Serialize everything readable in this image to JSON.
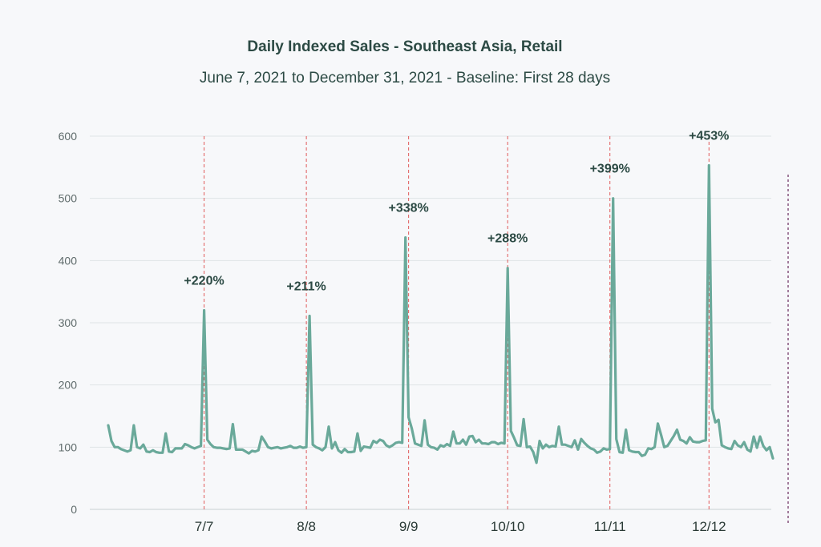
{
  "chart_data": {
    "type": "line",
    "title": "Daily Indexed Sales - Southeast Asia, Retail",
    "subtitle": "June 7, 2021 to December 31, 2021 - Baseline: First 28 days",
    "xlabel": "",
    "ylabel": "",
    "x_start": "2021-06-07",
    "x_end": "2021-12-31",
    "ylim": [
      0,
      600
    ],
    "yticks": [
      0,
      100,
      200,
      300,
      400,
      500,
      600
    ],
    "grid": true,
    "xticks": [
      {
        "date": "2021-07-07",
        "label": "7/7"
      },
      {
        "date": "2021-08-08",
        "label": "8/8"
      },
      {
        "date": "2021-09-09",
        "label": "9/9"
      },
      {
        "date": "2021-10-10",
        "label": "10/10"
      },
      {
        "date": "2021-11-11",
        "label": "11/11"
      },
      {
        "date": "2021-12-12",
        "label": "12/12"
      }
    ],
    "series": [
      {
        "name": "",
        "color": "#6aa99a",
        "values": [
          135,
          110,
          100,
          100,
          97,
          95,
          93,
          95,
          135,
          100,
          98,
          104,
          93,
          92,
          95,
          92,
          91,
          91,
          122,
          93,
          92,
          98,
          98,
          98,
          105,
          103,
          100,
          98,
          100,
          102,
          320,
          112,
          105,
          100,
          99,
          99,
          98,
          97,
          98,
          137,
          96,
          96,
          96,
          93,
          90,
          94,
          93,
          95,
          117,
          109,
          100,
          98,
          99,
          100,
          98,
          99,
          100,
          102,
          99,
          99,
          101,
          99,
          100,
          311,
          104,
          100,
          98,
          95,
          100,
          133,
          98,
          108,
          95,
          91,
          97,
          92,
          92,
          93,
          122,
          94,
          101,
          100,
          99,
          110,
          107,
          112,
          110,
          103,
          100,
          103,
          107,
          108,
          107,
          437,
          148,
          130,
          106,
          104,
          102,
          143,
          104,
          100,
          99,
          96,
          103,
          101,
          105,
          102,
          125,
          106,
          106,
          112,
          104,
          117,
          118,
          108,
          112,
          106,
          106,
          105,
          108,
          108,
          105,
          107,
          106,
          388,
          126,
          115,
          103,
          102,
          145,
          100,
          101,
          92,
          75,
          110,
          98,
          104,
          100,
          102,
          101,
          133,
          104,
          104,
          102,
          100,
          111,
          96,
          113,
          107,
          102,
          98,
          96,
          91,
          93,
          98,
          96,
          97,
          500,
          113,
          92,
          91,
          128,
          95,
          93,
          92,
          92,
          86,
          88,
          98,
          97,
          100,
          138,
          120,
          100,
          102,
          110,
          118,
          128,
          112,
          110,
          106,
          116,
          109,
          108,
          108,
          110,
          111,
          553,
          162,
          140,
          144,
          103,
          100,
          98,
          97,
          110,
          103,
          100,
          108,
          96,
          93,
          117,
          99,
          117,
          102,
          95,
          100,
          82
        ]
      }
    ],
    "annotations": [
      {
        "date": "2021-07-07",
        "label": "+220%",
        "peak": 320
      },
      {
        "date": "2021-08-08",
        "label": "+211%",
        "peak": 311
      },
      {
        "date": "2021-09-09",
        "label": "+338%",
        "peak": 437
      },
      {
        "date": "2021-10-10",
        "label": "+288%",
        "peak": 388
      },
      {
        "date": "2021-11-11",
        "label": "+399%",
        "peak": 500
      },
      {
        "date": "2021-12-12",
        "label": "+453%",
        "peak": 553
      }
    ],
    "event_line_color": "#e05a5a",
    "right_marker_color": "#6b2a5e"
  }
}
